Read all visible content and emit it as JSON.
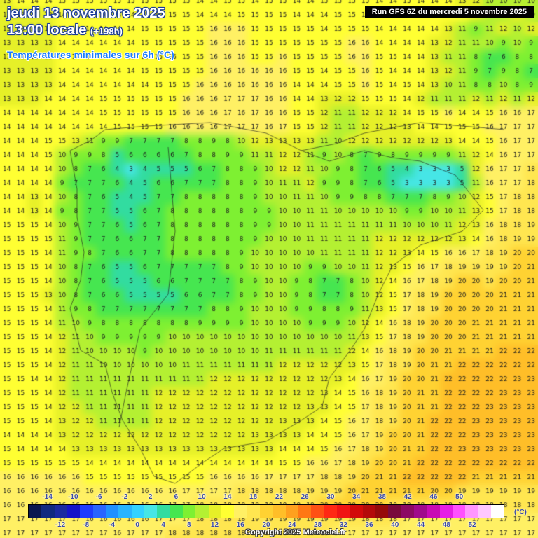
{
  "title": {
    "date": "jeudi 13 novembre 2025",
    "time": "13:00 locale",
    "offset": "(+198h)",
    "subtitle": "Températures minimales sur 6h (°C)"
  },
  "run_label": "Run GFS 6Z du mercredi 5 novembre 2025",
  "copyright": "Copyright 2025 Meteociel.fr",
  "legend": {
    "unit": "(°C)",
    "top_ticks": [
      "-14",
      "-10",
      "-6",
      "-2",
      "2",
      "6",
      "10",
      "14",
      "18",
      "22",
      "26",
      "30",
      "34",
      "38",
      "42",
      "46",
      "50"
    ],
    "bottom_ticks": [
      "-12",
      "-8",
      "-4",
      "0",
      "4",
      "8",
      "12",
      "16",
      "20",
      "24",
      "28",
      "32",
      "36",
      "40",
      "44",
      "48",
      "52"
    ],
    "colors": [
      "#0a1850",
      "#102a80",
      "#1a2aa0",
      "#1414c8",
      "#1e3cff",
      "#2864ff",
      "#1e90ff",
      "#28b4ff",
      "#32d2ff",
      "#46e6e6",
      "#32dca0",
      "#46e650",
      "#7ef032",
      "#b4f032",
      "#e6f028",
      "#ffff32",
      "#fff064",
      "#ffe650",
      "#ffd232",
      "#ffbe28",
      "#ffa01e",
      "#ff7814",
      "#ff5014",
      "#ff2814",
      "#f01414",
      "#d20a0a",
      "#b40a0a",
      "#960a0a",
      "#780a3c",
      "#8c0a64",
      "#a00a8c",
      "#c80ab4",
      "#e61ee6",
      "#ff50ff",
      "#ff96ff",
      "#ffc8ff",
      "#ffffff"
    ]
  },
  "grid_values": [
    "13 14 14 14 15 15 15 15 15 15 15 15 15 15 14 14 15 15 14 15 15 14 14 15 15 15 15 14 14 15 14 14 14 13 12 10 10 10 10",
    "13 13 13 13 14 14 14 14 14 14 15 15 15 15 14 14 14 15 15 15 15 14 14 14 15 15 15 15 14 14 14 14 14 14 12 10 11 12 10",
    "13 13 13 13 14 14 14 14 14 14 15 15 15 15 15 16 16 16 15 15 15 15 15 14 15 15 15 14 14 14 14 14 13 11 9 11 12 10 12",
    "13 13 13 13 14 14 14 14 14 14 15 15 15 15 15 16 16 16 15 15 15 15 15 15 15 16 16 14 14 14 14 13 12 11 11 10 9 10 9",
    "13 13 13 13 14 14 14 14 14 15 15 15 15 15 15 16 16 16 15 15 16 15 15 15 15 16 16 15 15 14 14 13 11 11 8 7 6 8 8",
    "13 13 13 13 14 14 14 14 14 14 15 15 15 15 15 16 16 16 16 16 16 15 15 14 15 15 16 15 14 14 14 13 12 11 9 7 9 8 7",
    "13 13 13 13 14 14 14 14 14 14 14 15 15 15 16 16 16 16 16 16 16 14 14 14 15 15 16 15 14 15 14 13 10 11 8 8 10 8 9",
    "13 13 13 14 14 14 14 15 15 15 15 15 15 16 16 16 17 17 17 16 16 14 14 13 12 12 15 15 15 14 12 11 11 11 12 11 12 11 12",
    "14 14 14 14 14 14 14 15 15 15 15 15 15 16 16 16 17 16 17 16 16 15 15 12 11 11 12 12 12 14 15 15 16 14 14 15 16 16 17",
    "14 14 14 14 14 14 14 14 15 15 15 15 16 16 16 16 17 17 17 16 17 15 15 12 11 11 12 12 12 13 14 14 15 15 15 16 17 17 17",
    "14 14 14 15 15 13 11 9 9 7 7 7 7 8 8 9 8 10 12 13 13 13 13 11 10 12 12 12 12 12 12 12 13 14 14 15 16 17 17",
    "14 14 14 15 10 9 9 8 5 6 6 6 6 7 8 8 9 9 11 11 12 12 11 9 10 8 7 9 8 9 9 9 9 11 12 14 16 17 17",
    "14 14 14 14 10 8 7 6 4 3 4 5 5 5 6 7 8 8 9 10 12 12 11 10 9 8 7 6 5 4 3 3 3 5 12 16 17 17 18",
    "14 14 14 14 9 7 7 7 6 4 5 6 6 7 7 7 8 8 9 10 11 11 12 9 9 8 7 6 5 3 3 3 3 5 11 16 17 17 18",
    "14 14 13 14 10 8 7 6 5 4 5 7 7 8 8 8 8 8 9 10 10 11 11 10 9 9 8 8 7 7 7 8 9 10 12 15 17 18 18",
    "14 14 13 14 9 8 7 7 5 5 6 7 8 8 8 8 8 8 9 9 10 10 11 11 10 10 10 10 10 9 9 10 10 11 13 15 17 18 18",
    "15 15 15 14 10 9 7 7 6 5 6 7 8 8 8 8 8 8 9 9 10 10 11 11 11 11 11 11 11 10 10 10 11 12 13 16 18 18 19",
    "15 15 15 15 11 9 7 7 6 6 7 7 8 8 8 8 8 8 9 10 10 10 11 11 11 11 11 12 12 12 12 12 12 13 14 16 18 19 19",
    "15 15 15 14 11 9 8 7 6 6 7 7 8 8 8 8 8 9 10 10 10 10 10 11 11 11 11 12 12 13 14 15 16 16 17 18 19 20 20",
    "15 15 15 14 10 8 7 6 5 5 6 7 7 7 7 7 8 9 10 10 10 10 9 9 10 10 11 12 13 15 16 17 18 19 19 19 19 20 21",
    "15 15 15 14 10 8 7 6 5 5 5 6 6 7 7 7 7 8 9 10 10 9 8 7 7 8 10 12 14 16 17 18 19 20 20 19 20 20 21",
    "15 15 15 13 10 8 7 6 6 5 5 5 5 6 6 7 7 8 9 10 10 9 8 7 7 8 10 12 15 17 18 19 20 20 20 20 21 21 21",
    "15 15 15 14 11 9 8 7 7 7 7 7 7 7 7 8 8 9 10 10 10 9 9 8 8 9 11 13 15 17 18 19 20 20 20 20 21 21 21",
    "15 15 15 14 11 10 9 8 8 8 8 8 8 8 9 9 9 9 10 10 10 10 9 9 9 10 12 14 16 18 19 20 20 20 21 21 21 21 21",
    "15 15 15 14 12 11 10 9 9 9 9 9 10 10 10 10 10 10 10 10 10 10 10 10 10 11 13 15 17 18 19 20 20 20 21 21 21 21 21",
    "15 15 15 14 12 11 10 10 10 10 9 10 10 10 10 10 10 10 10 11 11 11 11 11 11 12 14 16 18 19 20 20 21 21 21 21 22 22 22",
    "15 15 15 14 12 11 11 10 10 10 10 10 10 11 11 11 11 11 11 11 12 12 12 12 12 13 15 17 18 19 20 21 21 22 22 22 22 22 22",
    "15 15 14 14 12 11 11 11 11 11 11 11 11 11 11 12 12 12 12 12 12 12 12 12 13 14 16 17 19 20 20 21 22 22 22 22 22 23 23",
    "15 15 15 14 12 11 11 11 11 11 11 12 12 12 12 12 12 12 12 12 12 12 12 13 14 15 16 18 19 20 21 21 22 22 22 22 23 23 23",
    "15 15 15 14 12 12 11 11 11 11 11 12 12 12 12 12 12 12 12 12 12 12 13 13 14 15 17 18 19 20 21 21 22 22 22 23 23 23 23",
    "15 15 15 14 13 12 12 11 11 11 11 12 12 12 12 12 12 12 12 12 13 13 13 14 15 16 17 18 19 20 21 22 22 22 23 23 23 23 23",
    "14 14 14 14 13 12 12 12 12 12 12 12 12 12 12 12 12 12 13 13 13 13 14 14 15 16 17 19 20 20 21 22 22 22 23 23 23 23 23",
    "15 14 14 14 14 13 13 13 13 13 13 13 13 13 13 13 13 13 13 13 14 14 14 15 16 17 18 19 20 21 21 22 22 23 23 23 23 23 23",
    "15 15 15 15 15 15 14 14 14 14 14 14 14 14 14 14 14 14 14 14 15 15 16 16 17 18 19 20 20 21 22 22 22 22 22 22 22 22 22",
    "16 16 16 16 16 16 15 15 15 15 15 15 15 15 15 16 16 16 16 17 17 17 17 18 18 19 20 21 21 22 22 22 22 22 21 21 21 21 21",
    "16 16 16 16 16 16 16 16 16 16 16 16 16 17 17 17 17 18 18 18 18 18 19 19 19 20 21 21 21 21 21 20 20 19 19 19 19 19 19",
    "16 16 16 16 16 16 16 16 16 16 16 16 17 17 18 18 18 18 18 19 19 19 19 20 20 20 20 20 19 19 18 18 18 18 18 18 18 18 18",
    "17 17 17 17 17 17 16 16 16 16 16 17 17 17 18 18 18 18 19 19 19 19 19 19 19 19 18 18 18 17 17 17 17 17 17 17 17 17 17",
    "17 17 17 17 17 17 17 17 16 17 17 17 18 18 18 18 18 18 18 18 18 18 18 18 17 17 17 17 17 17 17 17 17 17 17 17 17 17 17"
  ]
}
